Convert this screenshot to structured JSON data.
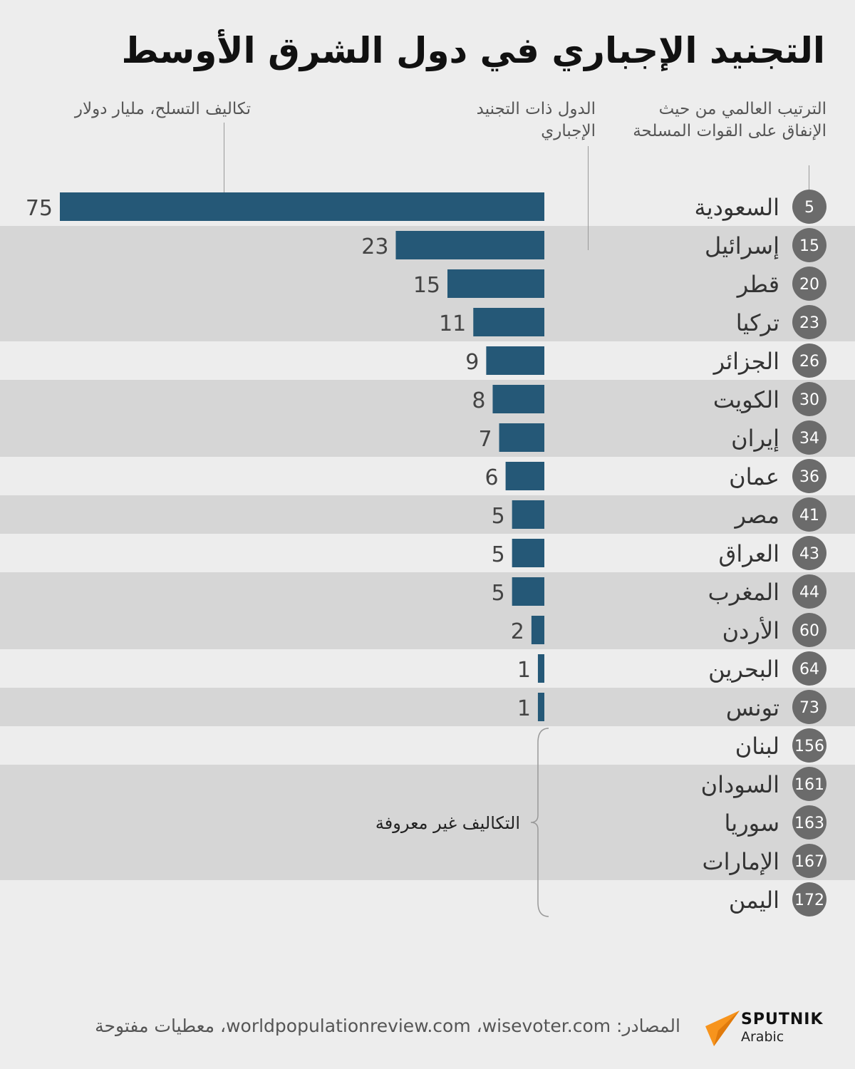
{
  "title": "التجنيد الإجباري في دول الشرق الأوسط",
  "headers": {
    "rank": "الترتيب العالمي من حيث الإنفاق على القوات المسلحة",
    "country": "الدول ذات التجنيد الإجباري",
    "cost": "تكاليف التسلح، مليار دولار"
  },
  "chart_data": {
    "type": "bar",
    "orientation": "horizontal",
    "categories": [
      "السعودية",
      "إسرائيل",
      "قطر",
      "تركيا",
      "الجزائر",
      "الكويت",
      "إيران",
      "عمان",
      "مصر",
      "العراق",
      "المغرب",
      "الأردن",
      "البحرين",
      "تونس",
      "لبنان",
      "السودان",
      "سوريا",
      "الإمارات",
      "اليمن"
    ],
    "ranks": [
      5,
      15,
      20,
      23,
      26,
      30,
      34,
      36,
      41,
      43,
      44,
      60,
      64,
      73,
      156,
      161,
      163,
      167,
      172
    ],
    "values": [
      75,
      23,
      15,
      11,
      9,
      8,
      7,
      6,
      5,
      5,
      5,
      2,
      1,
      1,
      null,
      null,
      null,
      null,
      null
    ],
    "unknown_label": "التكاليف غير معروفة",
    "bar_color": "#255877",
    "rank_circle_color": "#6b6b6b",
    "xlim": [
      0,
      75
    ]
  },
  "footer": {
    "sources": "المصادر: worldpopulationreview.com ،wisevoter.com، معطيات مفتوحة",
    "logo_name": "SPUTNIK",
    "logo_sub": "Arabic"
  },
  "colors": {
    "background": "#ededed",
    "band": "#d6d6d6",
    "logo_accent": "#f7941d"
  }
}
